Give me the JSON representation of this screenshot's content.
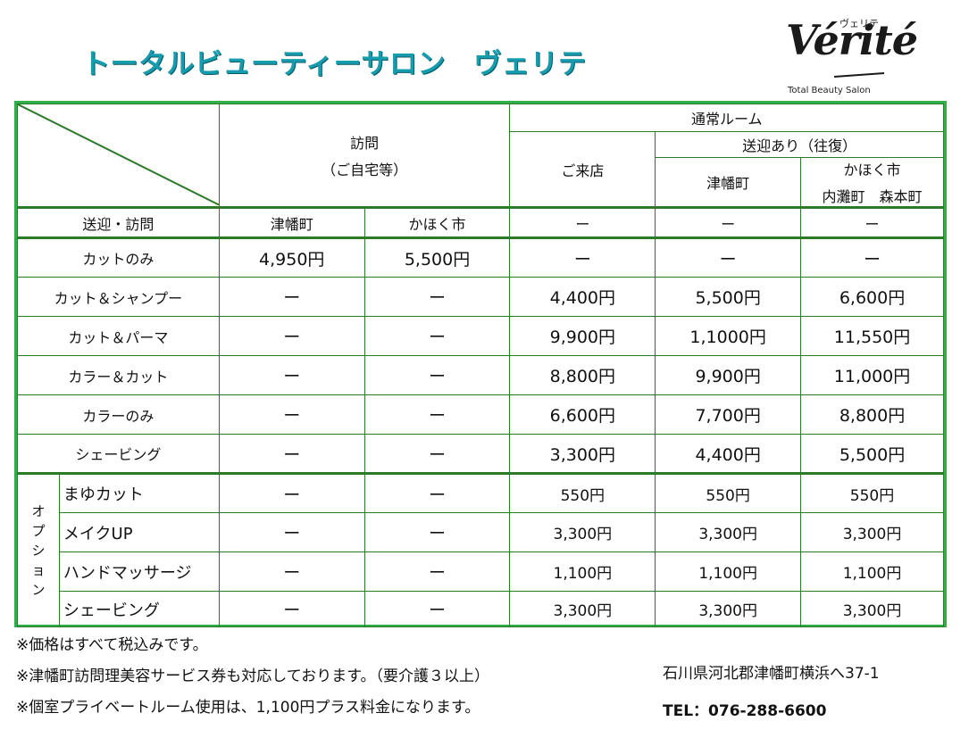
{
  "header": {
    "title": "トータルビューティーサロン　ヴェリテ",
    "logo_main": "Vérité",
    "logo_kana": "ヴェリテ",
    "logo_sub": "Total Beauty Salon"
  },
  "table": {
    "visit": "訪問",
    "visit_sub": "（ご自宅等）",
    "normal_room": "通常ルーム",
    "shop": "ご来店",
    "pickup": "送迎あり（往復）",
    "tsubata": "津幡町",
    "kahoku": "かほく市",
    "kahoku_sub": "内灘町　森本町",
    "pickup_visit_label": "送迎・訪問",
    "pickup_visit_values": [
      "津幡町",
      "かほく市",
      "ー",
      "ー",
      "ー"
    ],
    "rows": [
      {
        "label": "カットのみ",
        "values": [
          "4,950円",
          "5,500円",
          "ー",
          "ー",
          "ー"
        ]
      },
      {
        "label": "カット＆シャンプー",
        "values": [
          "ー",
          "ー",
          "4,400円",
          "5,500円",
          "6,600円"
        ]
      },
      {
        "label": "カット＆パーマ",
        "values": [
          "ー",
          "ー",
          "9,900円",
          "1,1000円",
          "11,550円"
        ]
      },
      {
        "label": "カラー＆カット",
        "values": [
          "ー",
          "ー",
          "8,800円",
          "9,900円",
          "11,000円"
        ]
      },
      {
        "label": "カラーのみ",
        "values": [
          "ー",
          "ー",
          "6,600円",
          "7,700円",
          "8,800円"
        ]
      },
      {
        "label": "シェービング",
        "values": [
          "ー",
          "ー",
          "3,300円",
          "4,400円",
          "5,500円"
        ]
      }
    ],
    "option_label": "オプション",
    "options": [
      {
        "label": "まゆカット",
        "values": [
          "ー",
          "ー",
          "550円",
          "550円",
          "550円"
        ]
      },
      {
        "label": "メイクUP",
        "values": [
          "ー",
          "ー",
          "3,300円",
          "3,300円",
          "3,300円"
        ]
      },
      {
        "label": "ハンドマッサージ",
        "values": [
          "ー",
          "ー",
          "1,100円",
          "1,100円",
          "1,100円"
        ]
      },
      {
        "label": "シェービング",
        "values": [
          "ー",
          "ー",
          "3,300円",
          "3,300円",
          "3,300円"
        ]
      }
    ]
  },
  "notes": [
    "※価格はすべて税込みです。",
    "※津幡町訪問理美容サービス券も対応しております。（要介護３以上）",
    "※個室プライベートルーム使用は、1,100円プラス料金になります。"
  ],
  "address": "石川県河北郡津幡町横浜へ37-1",
  "tel": "TEL：076-288-6600"
}
